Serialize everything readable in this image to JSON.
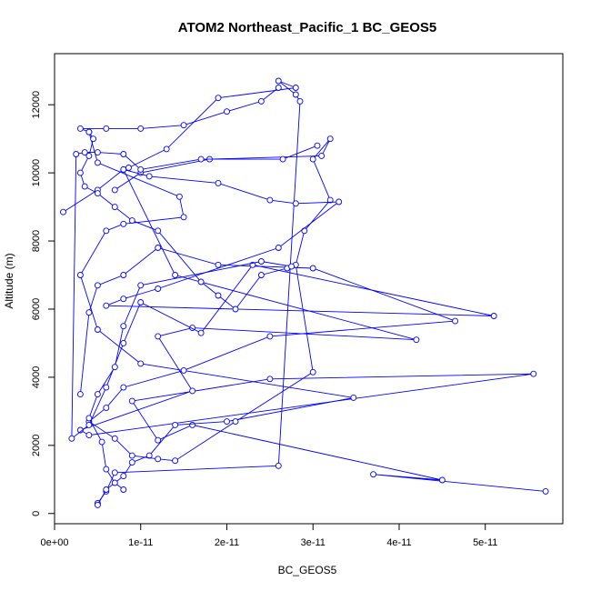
{
  "chart_data": {
    "type": "line",
    "title": "ATOM2 Northeast_Pacific_1 BC_GEOS5",
    "xlabel": "BC_GEOS5",
    "ylabel": "Altitude (m)",
    "xlim": [
      0,
      5.9e-11
    ],
    "ylim": [
      -300,
      13500
    ],
    "x_ticks": [
      0,
      1e-11,
      2e-11,
      3e-11,
      4e-11,
      5e-11
    ],
    "x_tick_labels": [
      "0e+00",
      "1e-11",
      "2e-11",
      "3e-11",
      "4e-11",
      "5e-11"
    ],
    "y_ticks": [
      0,
      2000,
      4000,
      6000,
      8000,
      10000,
      12000
    ],
    "y_tick_labels": [
      "0",
      "2000",
      "4000",
      "6000",
      "8000",
      "10000",
      "12000"
    ],
    "grid": false,
    "legend": "none",
    "series_color": "#0000ff",
    "marker": "open-circle",
    "series": [
      {
        "points": [
          [
            5.7e-11,
            650
          ],
          [
            3.7e-11,
            1150
          ],
          [
            4.5e-11,
            980
          ],
          [
            1.6e-11,
            2600
          ],
          [
            1.2e-11,
            2150
          ],
          [
            9e-12,
            3300
          ],
          [
            2.5e-11,
            3950
          ],
          [
            5.56e-11,
            4100
          ],
          [
            4e-12,
            2300
          ],
          [
            3e-12,
            2450
          ],
          [
            1.6e-11,
            3600
          ],
          [
            1.2e-11,
            5200
          ],
          [
            1.6e-11,
            5450
          ],
          [
            4.2e-11,
            5100
          ],
          [
            1.4e-11,
            7000
          ],
          [
            8e-12,
            10100
          ],
          [
            8.6e-12,
            10150
          ],
          [
            1.3e-11,
            10700
          ],
          [
            1.9e-11,
            12200
          ],
          [
            2.8e-11,
            12500
          ],
          [
            2.6e-11,
            12700
          ],
          [
            2.8e-11,
            12300
          ],
          [
            2.85e-11,
            12100
          ],
          [
            2.6e-11,
            1400
          ],
          [
            7e-12,
            1200
          ],
          [
            6e-12,
            650
          ],
          [
            5e-12,
            300
          ]
        ]
      },
      {
        "points": [
          [
            5e-12,
            250
          ],
          [
            6e-12,
            700
          ],
          [
            8e-12,
            1100
          ],
          [
            9e-12,
            1500
          ],
          [
            1.1e-11,
            1700
          ],
          [
            1.4e-11,
            2600
          ],
          [
            2e-11,
            2700
          ],
          [
            3.47e-11,
            3400
          ],
          [
            1e-11,
            4400
          ],
          [
            5e-12,
            5400
          ],
          [
            3e-12,
            7000
          ],
          [
            6e-12,
            8300
          ],
          [
            8e-12,
            8500
          ],
          [
            1.5e-11,
            8700
          ],
          [
            1.45e-11,
            9300
          ],
          [
            5e-12,
            10300
          ],
          [
            4e-12,
            11200
          ],
          [
            3e-12,
            11300
          ],
          [
            6e-12,
            11300
          ],
          [
            1e-11,
            11300
          ],
          [
            1.5e-11,
            11400
          ],
          [
            2e-11,
            11800
          ],
          [
            2.4e-11,
            12100
          ],
          [
            2.6e-11,
            12500
          ]
        ]
      },
      {
        "points": [
          [
            3e-12,
            3500
          ],
          [
            4e-12,
            5900
          ],
          [
            5e-12,
            6700
          ],
          [
            8e-12,
            7000
          ],
          [
            1.2e-11,
            7800
          ],
          [
            1.9e-11,
            7300
          ],
          [
            3e-11,
            7200
          ],
          [
            4.65e-11,
            5650
          ],
          [
            2.5e-11,
            5200
          ],
          [
            1.5e-11,
            4200
          ],
          [
            8e-12,
            3700
          ],
          [
            6e-12,
            3100
          ],
          [
            4e-12,
            2700
          ],
          [
            7e-12,
            2200
          ],
          [
            9e-12,
            1700
          ],
          [
            1.2e-11,
            1600
          ],
          [
            1.4e-11,
            1550
          ],
          [
            2.1e-11,
            2700
          ],
          [
            3e-11,
            4150
          ],
          [
            2.8e-11,
            7300
          ],
          [
            2.9e-11,
            8300
          ],
          [
            3.2e-11,
            9200
          ],
          [
            3e-11,
            10400
          ],
          [
            3.2e-11,
            11000
          ],
          [
            3.1e-11,
            10500
          ],
          [
            1.8e-11,
            10400
          ],
          [
            1e-11,
            10000
          ],
          [
            7e-12,
            9500
          ]
        ]
      },
      {
        "points": [
          [
            1e-12,
            8850
          ],
          [
            5e-12,
            9500
          ],
          [
            8e-12,
            10100
          ],
          [
            1.1e-11,
            9900
          ],
          [
            1.9e-11,
            9700
          ],
          [
            2.5e-11,
            9200
          ],
          [
            2.8e-11,
            9100
          ],
          [
            3.3e-11,
            9150
          ],
          [
            2.6e-11,
            7800
          ],
          [
            1.2e-11,
            6600
          ],
          [
            8e-12,
            6300
          ],
          [
            6e-12,
            6100
          ],
          [
            5.1e-11,
            5800
          ],
          [
            2.3e-11,
            7300
          ],
          [
            1.7e-11,
            5300
          ],
          [
            1e-11,
            6200
          ],
          [
            8e-12,
            5000
          ],
          [
            6e-12,
            3700
          ],
          [
            4e-12,
            2600
          ],
          [
            2e-12,
            2200
          ],
          [
            2.5e-12,
            10550
          ],
          [
            3.5e-12,
            10600
          ],
          [
            5e-12,
            10600
          ],
          [
            8e-12,
            10550
          ],
          [
            1e-11,
            10100
          ],
          [
            1.7e-11,
            10400
          ],
          [
            2.65e-11,
            10400
          ],
          [
            3.05e-11,
            10800
          ]
        ]
      },
      {
        "points": [
          [
            4e-12,
            11200
          ],
          [
            4.5e-12,
            11000
          ],
          [
            4e-12,
            10500
          ],
          [
            3e-12,
            10000
          ],
          [
            3.5e-12,
            9600
          ],
          [
            5e-12,
            9400
          ],
          [
            7e-12,
            9000
          ],
          [
            9e-12,
            8600
          ],
          [
            1.2e-11,
            8300
          ],
          [
            1.7e-11,
            6800
          ],
          [
            1.9e-11,
            6400
          ],
          [
            2.1e-11,
            6000
          ],
          [
            2.4e-11,
            7000
          ],
          [
            2.7e-11,
            7200
          ],
          [
            2.75e-11,
            7250
          ],
          [
            2.4e-11,
            7400
          ],
          [
            1e-11,
            6700
          ],
          [
            8e-12,
            5500
          ],
          [
            7e-12,
            4300
          ],
          [
            5e-12,
            3500
          ],
          [
            4e-12,
            2800
          ],
          [
            5.5e-12,
            2100
          ],
          [
            6e-12,
            1300
          ],
          [
            7e-12,
            900
          ],
          [
            8e-12,
            700
          ]
        ]
      }
    ]
  }
}
